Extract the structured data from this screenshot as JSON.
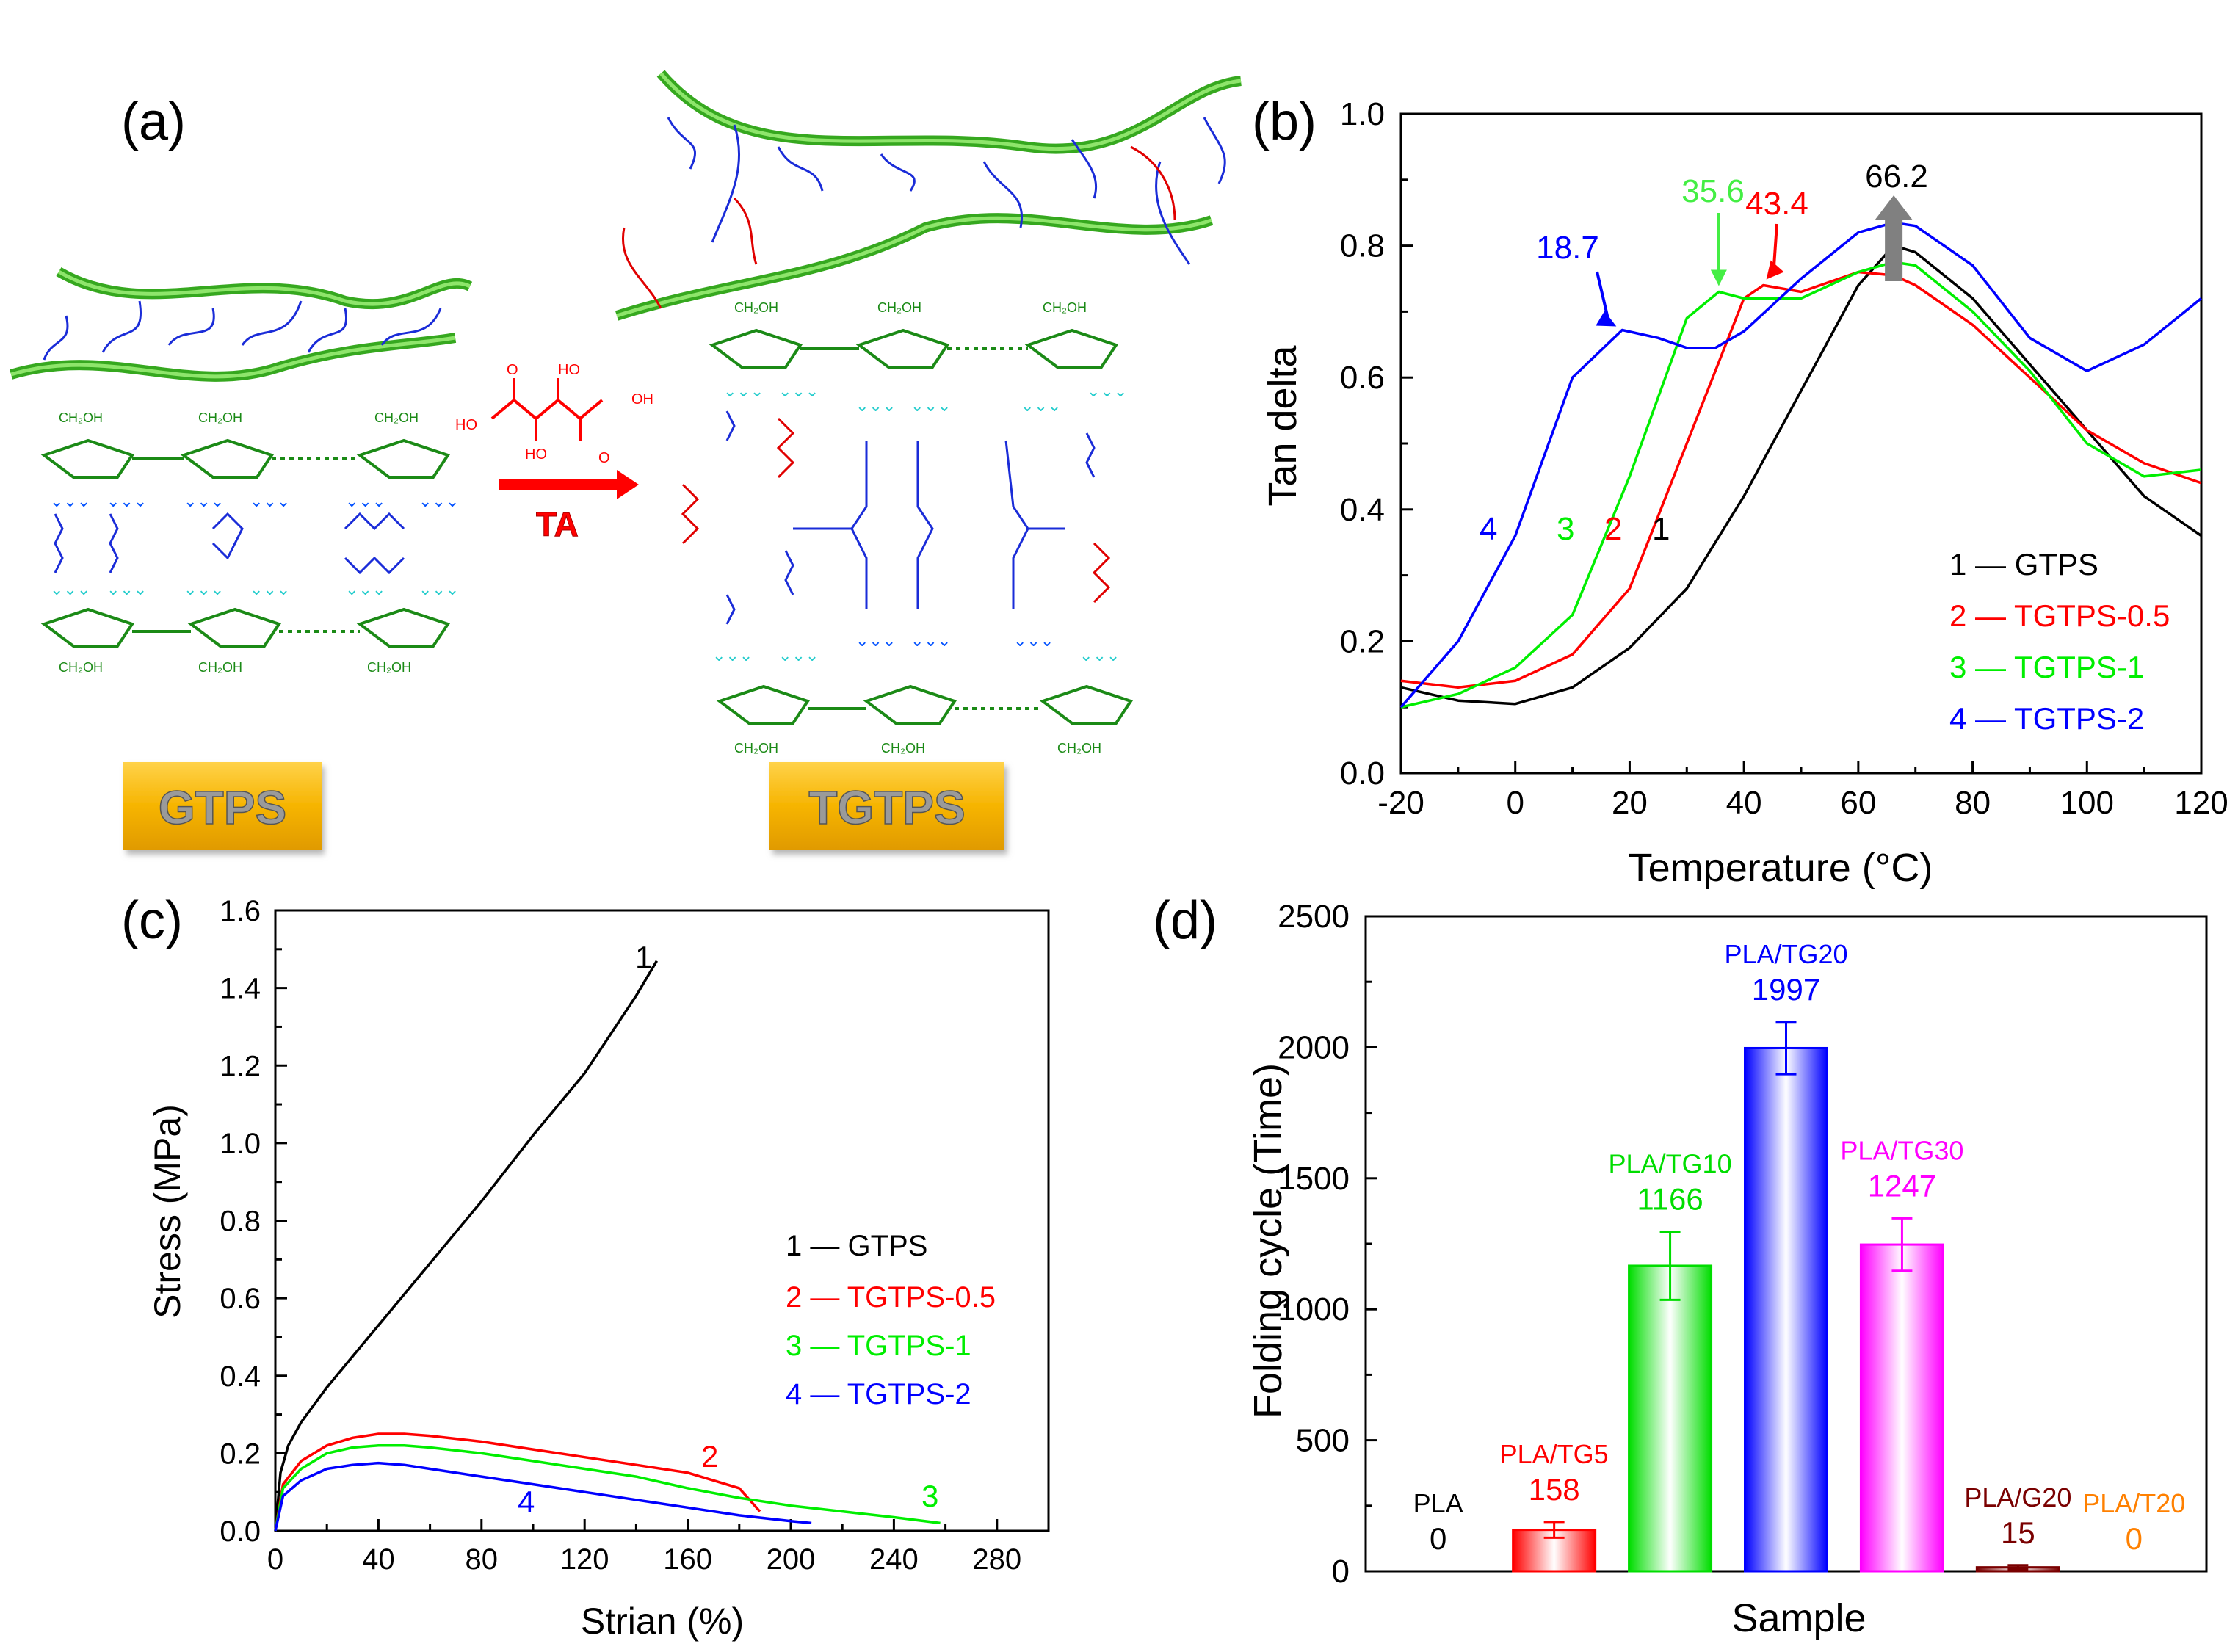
{
  "panels": {
    "a": {
      "label": "(a)",
      "arrow_label": "TA",
      "left_label": "GTPS",
      "right_label": "TGTPS",
      "ch2oh": "CH₂OH",
      "ho": "HO",
      "oh": "OH",
      "o": "O"
    }
  },
  "chart_data": [
    {
      "panel": "(b)",
      "type": "line",
      "xlabel": "Temperature (°C)",
      "ylabel": "Tan delta",
      "xlim": [
        -20,
        120
      ],
      "ylim": [
        0.0,
        1.0
      ],
      "xticks": [
        "-20",
        "0",
        "20",
        "40",
        "60",
        "80",
        "100",
        "120"
      ],
      "yticks": [
        "0.0",
        "0.2",
        "0.4",
        "0.6",
        "0.8",
        "1.0"
      ],
      "legend_placement": "bottom-right",
      "legend": [
        "1 — GTPS",
        "2 — TGTPS-0.5",
        "3 — TGTPS-1",
        "4 — TGTPS-2"
      ],
      "series": [
        {
          "name": "GTPS",
          "curve_label": "1",
          "color": "#000000",
          "x": [
            -20,
            -10,
            0,
            10,
            20,
            30,
            40,
            50,
            60,
            66.2,
            70,
            80,
            90,
            100,
            110,
            120
          ],
          "y": [
            0.13,
            0.11,
            0.105,
            0.13,
            0.19,
            0.28,
            0.42,
            0.58,
            0.74,
            0.8,
            0.79,
            0.72,
            0.62,
            0.52,
            0.42,
            0.36
          ]
        },
        {
          "name": "TGTPS-0.5",
          "curve_label": "2",
          "color": "#ff0000",
          "x": [
            -20,
            -10,
            0,
            10,
            20,
            30,
            40,
            43.4,
            50,
            60,
            66.2,
            70,
            80,
            90,
            100,
            110,
            120
          ],
          "y": [
            0.14,
            0.13,
            0.14,
            0.18,
            0.28,
            0.5,
            0.72,
            0.74,
            0.73,
            0.76,
            0.755,
            0.74,
            0.68,
            0.6,
            0.52,
            0.47,
            0.44
          ]
        },
        {
          "name": "TGTPS-1",
          "curve_label": "3",
          "color": "#00ee00",
          "x": [
            -20,
            -10,
            0,
            10,
            20,
            30,
            35.6,
            40,
            50,
            60,
            66.2,
            70,
            80,
            90,
            100,
            110,
            120
          ],
          "y": [
            0.1,
            0.12,
            0.16,
            0.24,
            0.45,
            0.69,
            0.73,
            0.72,
            0.72,
            0.76,
            0.775,
            0.77,
            0.7,
            0.61,
            0.5,
            0.45,
            0.46
          ]
        },
        {
          "name": "TGTPS-2",
          "curve_label": "4",
          "color": "#0000ff",
          "x": [
            -20,
            -10,
            0,
            10,
            18.7,
            25,
            30,
            35,
            40,
            50,
            60,
            66.2,
            70,
            80,
            90,
            100,
            110,
            120
          ],
          "y": [
            0.1,
            0.2,
            0.36,
            0.6,
            0.672,
            0.66,
            0.645,
            0.645,
            0.67,
            0.75,
            0.82,
            0.835,
            0.83,
            0.77,
            0.66,
            0.61,
            0.65,
            0.72
          ]
        }
      ],
      "annotations": [
        {
          "text": "18.7",
          "color": "#0000ff",
          "x": 18.7,
          "y": 0.672
        },
        {
          "text": "35.6",
          "color": "#44ee44",
          "x": 35.6,
          "y": 0.73
        },
        {
          "text": "43.4",
          "color": "#ff0000",
          "x": 43.4,
          "y": 0.74
        },
        {
          "text": "66.2",
          "color": "#000000",
          "x": 66.2,
          "y": 0.8
        }
      ]
    },
    {
      "panel": "(c)",
      "type": "line",
      "xlabel": "Strian (%)",
      "ylabel": "Stress (MPa)",
      "xlim": [
        0,
        300
      ],
      "ylim": [
        0.0,
        1.6
      ],
      "xticks": [
        "0",
        "40",
        "80",
        "120",
        "160",
        "200",
        "240",
        "280"
      ],
      "yticks": [
        "0.0",
        "0.2",
        "0.4",
        "0.6",
        "0.8",
        "1.0",
        "1.2",
        "1.4",
        "1.6"
      ],
      "legend_placement": "right",
      "legend": [
        "1 — GTPS",
        "2 — TGTPS-0.5",
        "3 — TGTPS-1",
        "4 — TGTPS-2"
      ],
      "series": [
        {
          "name": "GTPS",
          "curve_label": "1",
          "color": "#000000",
          "x": [
            0,
            2,
            5,
            10,
            20,
            30,
            40,
            60,
            80,
            100,
            120,
            140,
            148
          ],
          "y": [
            0,
            0.15,
            0.22,
            0.28,
            0.37,
            0.45,
            0.53,
            0.69,
            0.85,
            1.02,
            1.18,
            1.38,
            1.47
          ]
        },
        {
          "name": "TGTPS-0.5",
          "curve_label": "2",
          "color": "#ff0000",
          "x": [
            0,
            3,
            10,
            20,
            30,
            40,
            50,
            60,
            80,
            100,
            120,
            140,
            160,
            180,
            188
          ],
          "y": [
            0,
            0.12,
            0.18,
            0.22,
            0.24,
            0.25,
            0.25,
            0.245,
            0.23,
            0.21,
            0.19,
            0.17,
            0.15,
            0.11,
            0.05
          ]
        },
        {
          "name": "TGTPS-1",
          "curve_label": "3",
          "color": "#00ee00",
          "x": [
            0,
            3,
            10,
            20,
            30,
            40,
            50,
            60,
            80,
            100,
            120,
            140,
            160,
            180,
            200,
            220,
            240,
            258
          ],
          "y": [
            0,
            0.11,
            0.16,
            0.2,
            0.215,
            0.22,
            0.22,
            0.215,
            0.2,
            0.18,
            0.16,
            0.14,
            0.11,
            0.085,
            0.065,
            0.05,
            0.035,
            0.02
          ]
        },
        {
          "name": "TGTPS-2",
          "curve_label": "4",
          "color": "#0000ff",
          "x": [
            0,
            3,
            10,
            20,
            30,
            40,
            50,
            60,
            80,
            100,
            120,
            140,
            160,
            180,
            200,
            208
          ],
          "y": [
            0,
            0.09,
            0.13,
            0.16,
            0.17,
            0.175,
            0.17,
            0.16,
            0.14,
            0.12,
            0.1,
            0.08,
            0.06,
            0.04,
            0.025,
            0.02
          ]
        }
      ]
    },
    {
      "panel": "(d)",
      "type": "bar",
      "xlabel": "Sample",
      "ylabel": "Folding cycle (Time)",
      "ylim": [
        0,
        2500
      ],
      "yticks": [
        "0",
        "500",
        "1000",
        "1500",
        "2000",
        "2500"
      ],
      "categories": [
        "PLA",
        "PLA/TG5",
        "PLA/TG10",
        "PLA/TG20",
        "PLA/TG30",
        "PLA/G20",
        "PLA/T20"
      ],
      "values": [
        0,
        158,
        1166,
        1997,
        1247,
        15,
        0
      ],
      "value_labels": [
        "0",
        "158",
        "1166",
        "1997",
        "1247",
        "15",
        "0"
      ],
      "errors": [
        0,
        30,
        130,
        100,
        100,
        8,
        0
      ],
      "colors": [
        "#000000",
        "#ff0000",
        "#00dd00",
        "#0000ff",
        "#ff00ff",
        "#7a0000",
        "#ff8000"
      ]
    }
  ]
}
